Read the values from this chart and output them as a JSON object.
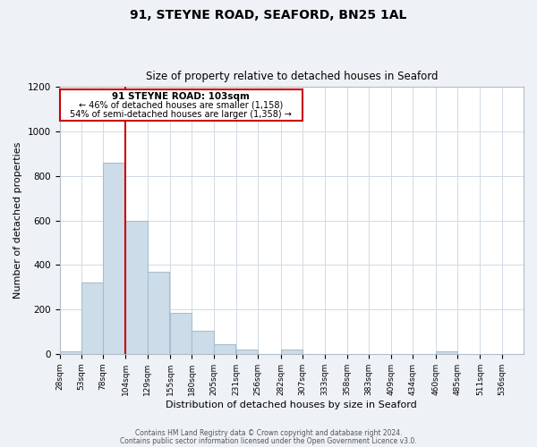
{
  "title1": "91, STEYNE ROAD, SEAFORD, BN25 1AL",
  "title2": "Size of property relative to detached houses in Seaford",
  "xlabel": "Distribution of detached houses by size in Seaford",
  "ylabel": "Number of detached properties",
  "bar_left_edges": [
    28,
    53,
    78,
    104,
    129,
    155,
    180,
    205,
    231,
    256,
    282,
    307,
    333,
    358,
    383,
    409,
    434,
    460,
    485,
    511
  ],
  "bar_heights": [
    10,
    320,
    860,
    600,
    370,
    185,
    105,
    45,
    20,
    0,
    20,
    0,
    0,
    0,
    0,
    0,
    0,
    10,
    0,
    0
  ],
  "bin_width": 25,
  "bar_color": "#ccdce8",
  "bar_edgecolor": "#a8bece",
  "vline_x": 104,
  "vline_color": "#cc0000",
  "annotation_text_line1": "91 STEYNE ROAD: 103sqm",
  "annotation_text_line2": "← 46% of detached houses are smaller (1,158)",
  "annotation_text_line3": "54% of semi-detached houses are larger (1,358) →",
  "annotation_box_color": "#cc0000",
  "xlim_left": 28,
  "xlim_right": 561,
  "ylim_top": 1200,
  "yticks": [
    0,
    200,
    400,
    600,
    800,
    1000,
    1200
  ],
  "tick_labels": [
    "28sqm",
    "53sqm",
    "78sqm",
    "104sqm",
    "129sqm",
    "155sqm",
    "180sqm",
    "205sqm",
    "231sqm",
    "256sqm",
    "282sqm",
    "307sqm",
    "333sqm",
    "358sqm",
    "383sqm",
    "409sqm",
    "434sqm",
    "460sqm",
    "485sqm",
    "511sqm",
    "536sqm"
  ],
  "tick_positions": [
    28,
    53,
    78,
    104,
    129,
    155,
    180,
    205,
    231,
    256,
    282,
    307,
    333,
    358,
    383,
    409,
    434,
    460,
    485,
    511,
    536
  ],
  "footer1": "Contains HM Land Registry data © Crown copyright and database right 2024.",
  "footer2": "Contains public sector information licensed under the Open Government Licence v3.0.",
  "bg_color": "#eef2f6",
  "plot_bg_color": "#ffffff",
  "grid_color": "#d0dae4"
}
